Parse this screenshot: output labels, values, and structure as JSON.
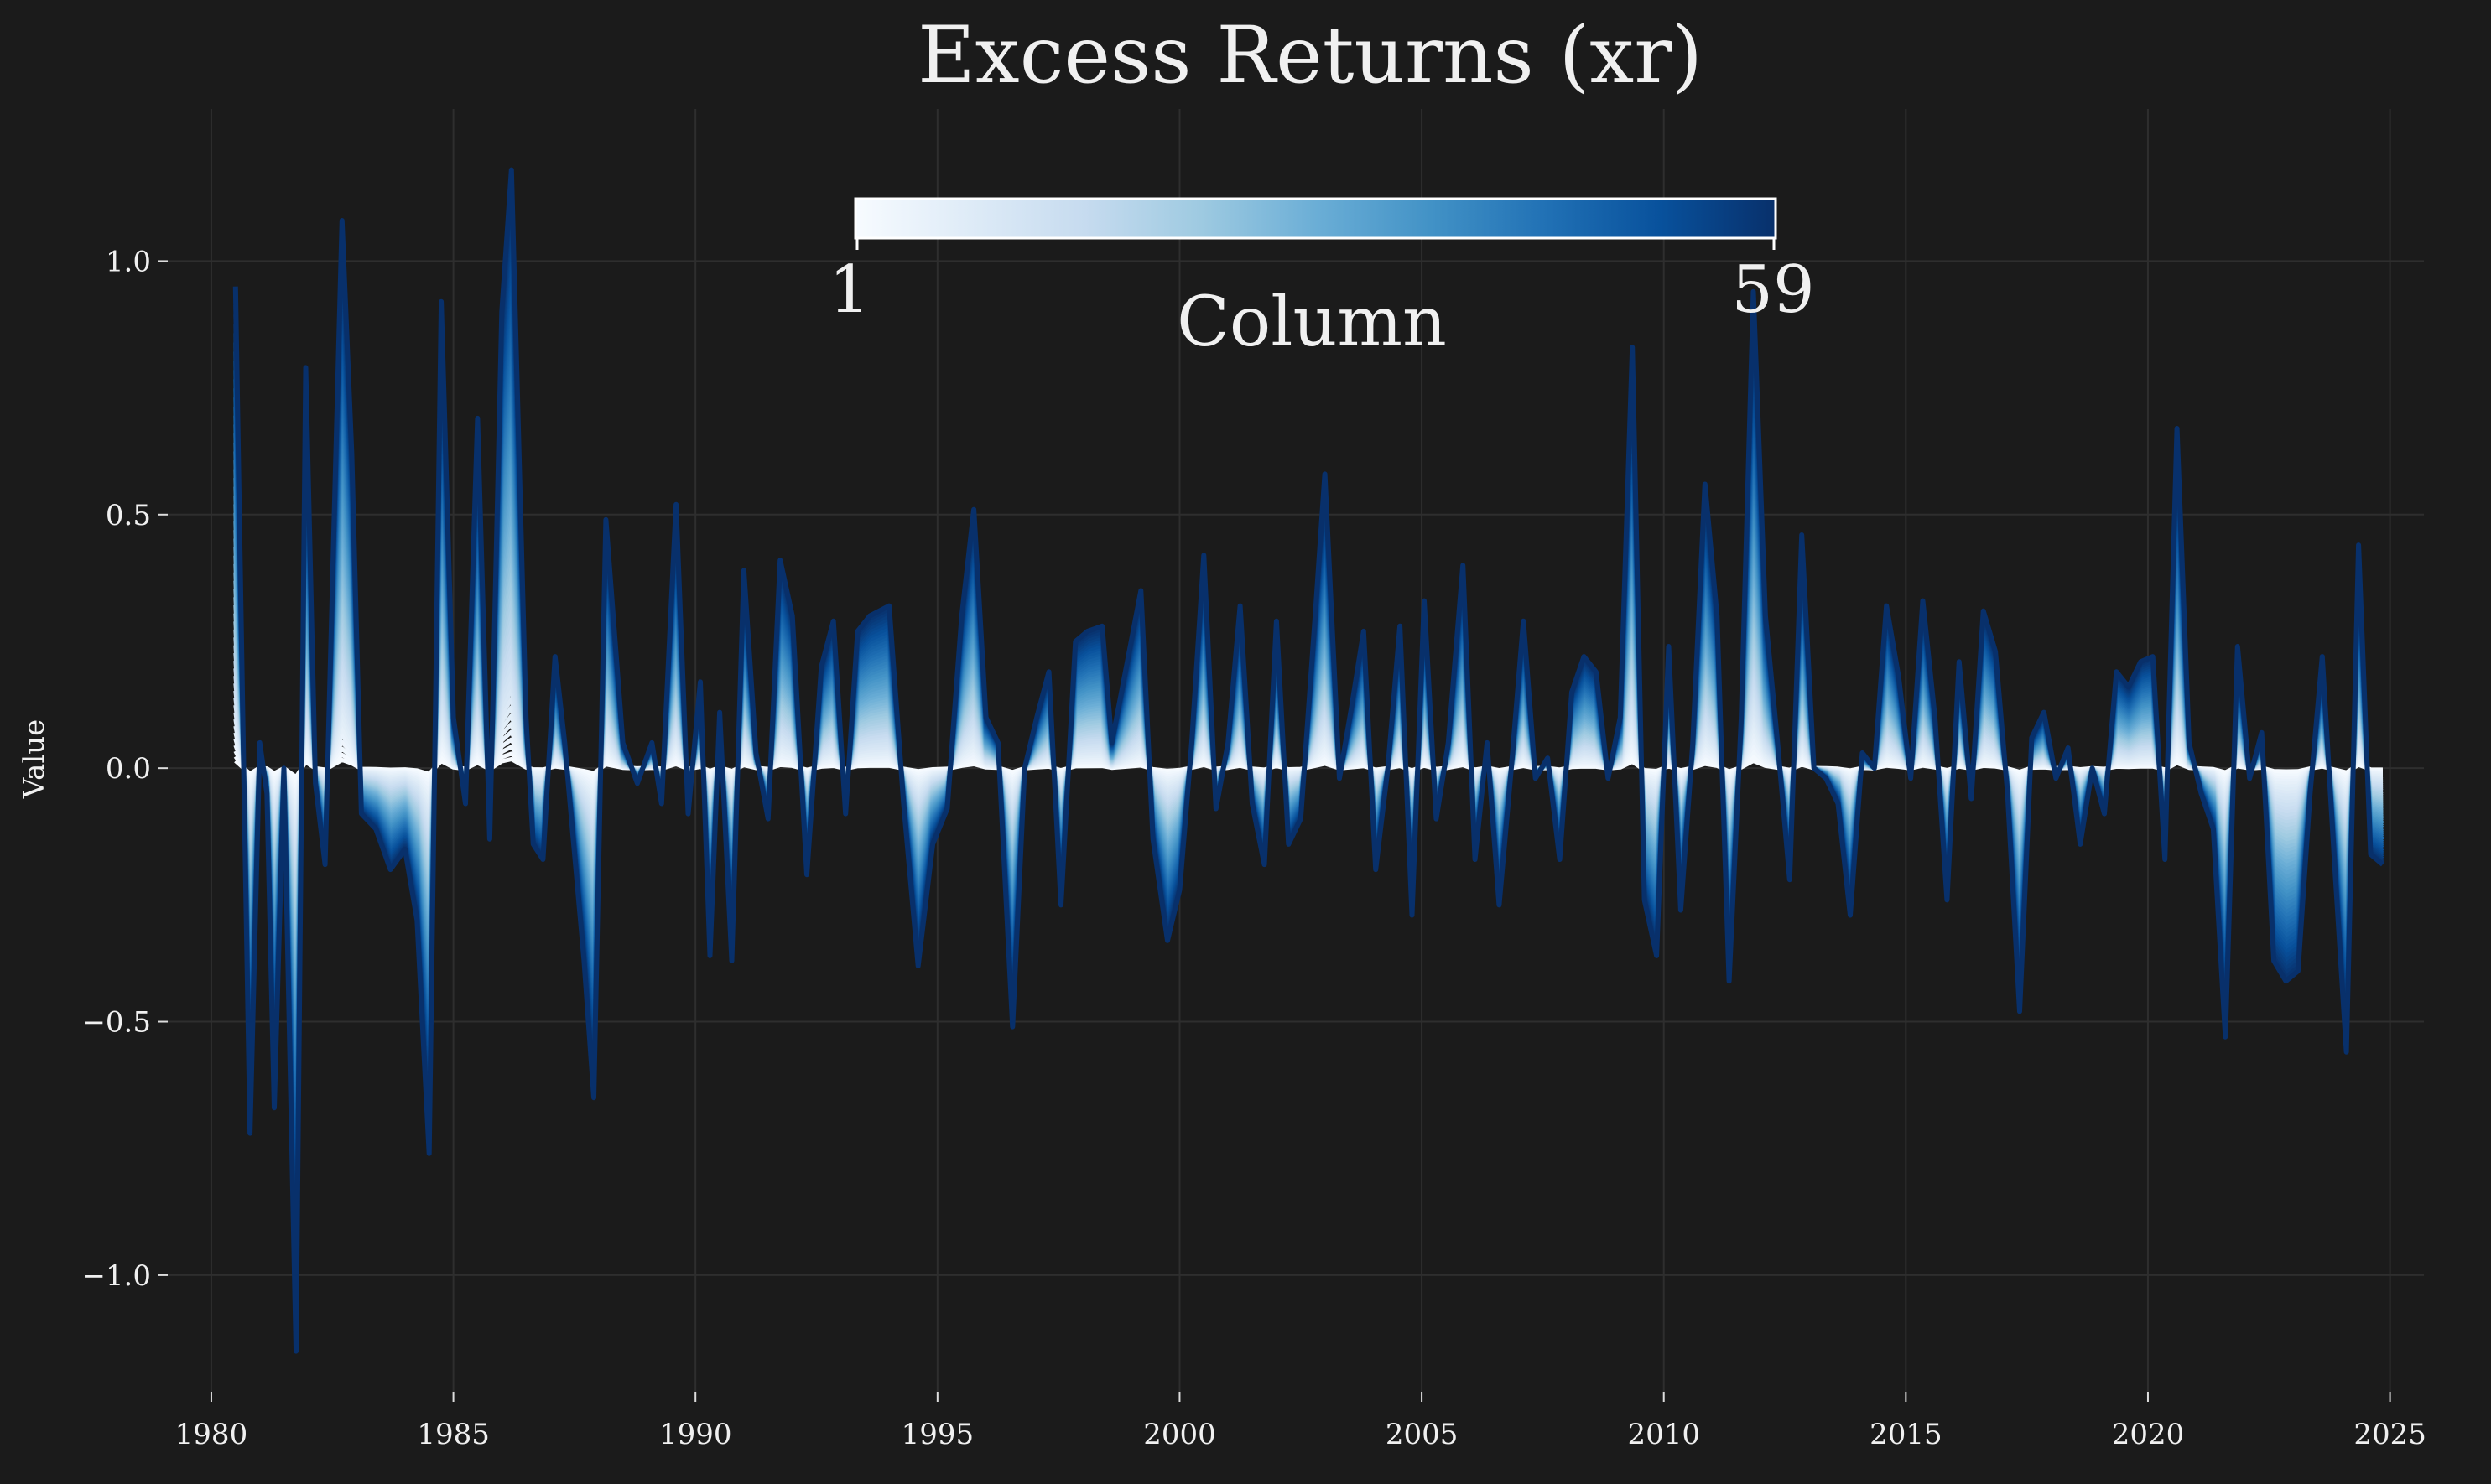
{
  "chart_data": {
    "type": "line",
    "title": "Excess Returns (xr)",
    "xlabel": "",
    "ylabel": "Value",
    "xlim": [
      1979.1,
      2025.7
    ],
    "ylim": [
      -1.23,
      1.3
    ],
    "x_ticks": [
      1980,
      1985,
      1990,
      1995,
      2000,
      2005,
      2010,
      2015,
      2020,
      2025
    ],
    "x_tick_labels": [
      "1980",
      "1985",
      "1990",
      "1995",
      "2000",
      "2005",
      "2010",
      "2015",
      "2020",
      "2025"
    ],
    "y_ticks": [
      1.0,
      0.5,
      0.0,
      -0.5,
      -1.0
    ],
    "y_tick_labels": [
      "1.0",
      "0.5",
      "0.0",
      "−0.5",
      "−1.0"
    ],
    "grid": true,
    "colorbar": {
      "label": "Column",
      "min_label": "1",
      "max_label": "59",
      "min": 1,
      "max": 59,
      "colormap": "Blues",
      "placement": "top-center"
    },
    "series_count": 59,
    "series_note_scaling": "intermediate columns interpolated between column 1 (near 0) and column 59 (largest)",
    "envelope": {
      "name": "column 59",
      "points": [
        [
          1980.5,
          0.95
        ],
        [
          1980.65,
          0.1
        ],
        [
          1980.8,
          -0.72
        ],
        [
          1981.0,
          0.05
        ],
        [
          1981.15,
          -0.05
        ],
        [
          1981.3,
          -0.67
        ],
        [
          1981.5,
          0.0
        ],
        [
          1981.75,
          -1.15
        ],
        [
          1981.95,
          0.79
        ],
        [
          1982.15,
          -0.03
        ],
        [
          1982.35,
          -0.19
        ],
        [
          1982.7,
          1.08
        ],
        [
          1982.9,
          0.62
        ],
        [
          1983.1,
          -0.09
        ],
        [
          1983.4,
          -0.12
        ],
        [
          1983.7,
          -0.2
        ],
        [
          1984.0,
          -0.16
        ],
        [
          1984.25,
          -0.3
        ],
        [
          1984.5,
          -0.76
        ],
        [
          1984.75,
          0.92
        ],
        [
          1985.0,
          0.1
        ],
        [
          1985.25,
          -0.07
        ],
        [
          1985.5,
          0.69
        ],
        [
          1985.75,
          -0.14
        ],
        [
          1986.0,
          0.9
        ],
        [
          1986.2,
          1.18
        ],
        [
          1986.5,
          0.1
        ],
        [
          1986.65,
          -0.15
        ],
        [
          1986.85,
          -0.18
        ],
        [
          1987.1,
          0.22
        ],
        [
          1987.3,
          0.05
        ],
        [
          1987.7,
          -0.38
        ],
        [
          1987.9,
          -0.65
        ],
        [
          1988.15,
          0.49
        ],
        [
          1988.5,
          0.05
        ],
        [
          1988.8,
          -0.03
        ],
        [
          1989.1,
          0.05
        ],
        [
          1989.3,
          -0.07
        ],
        [
          1989.6,
          0.52
        ],
        [
          1989.85,
          -0.09
        ],
        [
          1990.1,
          0.17
        ],
        [
          1990.3,
          -0.37
        ],
        [
          1990.5,
          0.11
        ],
        [
          1990.75,
          -0.38
        ],
        [
          1991.0,
          0.39
        ],
        [
          1991.25,
          0.03
        ],
        [
          1991.5,
          -0.1
        ],
        [
          1991.75,
          0.41
        ],
        [
          1992.0,
          0.3
        ],
        [
          1992.3,
          -0.21
        ],
        [
          1992.6,
          0.2
        ],
        [
          1992.85,
          0.29
        ],
        [
          1993.1,
          -0.09
        ],
        [
          1993.35,
          0.27
        ],
        [
          1993.6,
          0.3
        ],
        [
          1994.0,
          0.32
        ],
        [
          1994.3,
          -0.07
        ],
        [
          1994.6,
          -0.39
        ],
        [
          1994.9,
          -0.15
        ],
        [
          1995.2,
          -0.08
        ],
        [
          1995.5,
          0.3
        ],
        [
          1995.75,
          0.51
        ],
        [
          1996.0,
          0.1
        ],
        [
          1996.25,
          0.05
        ],
        [
          1996.55,
          -0.51
        ],
        [
          1996.8,
          0.0
        ],
        [
          1997.05,
          0.1
        ],
        [
          1997.3,
          0.19
        ],
        [
          1997.55,
          -0.27
        ],
        [
          1997.85,
          0.25
        ],
        [
          1998.1,
          0.27
        ],
        [
          1998.4,
          0.28
        ],
        [
          1998.6,
          0.05
        ],
        [
          1998.9,
          0.2
        ],
        [
          1999.2,
          0.35
        ],
        [
          1999.45,
          -0.14
        ],
        [
          1999.75,
          -0.34
        ],
        [
          2000.0,
          -0.24
        ],
        [
          2000.25,
          0.05
        ],
        [
          2000.5,
          0.42
        ],
        [
          2000.75,
          -0.08
        ],
        [
          2001.0,
          0.05
        ],
        [
          2001.25,
          0.32
        ],
        [
          2001.5,
          -0.07
        ],
        [
          2001.75,
          -0.19
        ],
        [
          2002.0,
          0.29
        ],
        [
          2002.25,
          -0.15
        ],
        [
          2002.5,
          -0.1
        ],
        [
          2002.8,
          0.3
        ],
        [
          2003.0,
          0.58
        ],
        [
          2003.3,
          -0.02
        ],
        [
          2003.55,
          0.12
        ],
        [
          2003.8,
          0.27
        ],
        [
          2004.05,
          -0.2
        ],
        [
          2004.3,
          0.0
        ],
        [
          2004.55,
          0.28
        ],
        [
          2004.8,
          -0.29
        ],
        [
          2005.05,
          0.33
        ],
        [
          2005.3,
          -0.1
        ],
        [
          2005.55,
          0.05
        ],
        [
          2005.85,
          0.4
        ],
        [
          2006.1,
          -0.18
        ],
        [
          2006.35,
          0.05
        ],
        [
          2006.6,
          -0.27
        ],
        [
          2006.85,
          0.0
        ],
        [
          2007.1,
          0.29
        ],
        [
          2007.35,
          -0.02
        ],
        [
          2007.6,
          0.02
        ],
        [
          2007.85,
          -0.18
        ],
        [
          2008.1,
          0.15
        ],
        [
          2008.35,
          0.22
        ],
        [
          2008.6,
          0.19
        ],
        [
          2008.85,
          -0.02
        ],
        [
          2009.1,
          0.1
        ],
        [
          2009.35,
          0.83
        ],
        [
          2009.6,
          -0.26
        ],
        [
          2009.85,
          -0.37
        ],
        [
          2010.1,
          0.24
        ],
        [
          2010.35,
          -0.28
        ],
        [
          2010.6,
          0.05
        ],
        [
          2010.85,
          0.56
        ],
        [
          2011.1,
          0.3
        ],
        [
          2011.35,
          -0.42
        ],
        [
          2011.6,
          0.1
        ],
        [
          2011.85,
          0.94
        ],
        [
          2012.1,
          0.3
        ],
        [
          2012.35,
          0.05
        ],
        [
          2012.6,
          -0.22
        ],
        [
          2012.85,
          0.46
        ],
        [
          2013.1,
          0.0
        ],
        [
          2013.35,
          -0.02
        ],
        [
          2013.6,
          -0.07
        ],
        [
          2013.85,
          -0.29
        ],
        [
          2014.1,
          0.03
        ],
        [
          2014.35,
          0.0
        ],
        [
          2014.6,
          0.32
        ],
        [
          2014.85,
          0.18
        ],
        [
          2015.1,
          -0.02
        ],
        [
          2015.35,
          0.33
        ],
        [
          2015.6,
          0.1
        ],
        [
          2015.85,
          -0.26
        ],
        [
          2016.1,
          0.21
        ],
        [
          2016.35,
          -0.06
        ],
        [
          2016.6,
          0.31
        ],
        [
          2016.85,
          0.23
        ],
        [
          2017.1,
          -0.05
        ],
        [
          2017.35,
          -0.48
        ],
        [
          2017.6,
          0.06
        ],
        [
          2017.85,
          0.11
        ],
        [
          2018.1,
          -0.02
        ],
        [
          2018.35,
          0.04
        ],
        [
          2018.6,
          -0.15
        ],
        [
          2018.85,
          0.0
        ],
        [
          2019.1,
          -0.09
        ],
        [
          2019.35,
          0.19
        ],
        [
          2019.6,
          0.16
        ],
        [
          2019.85,
          0.21
        ],
        [
          2020.1,
          0.22
        ],
        [
          2020.35,
          -0.18
        ],
        [
          2020.6,
          0.67
        ],
        [
          2020.85,
          0.05
        ],
        [
          2021.1,
          -0.05
        ],
        [
          2021.35,
          -0.12
        ],
        [
          2021.6,
          -0.53
        ],
        [
          2021.85,
          0.24
        ],
        [
          2022.1,
          -0.02
        ],
        [
          2022.35,
          0.07
        ],
        [
          2022.6,
          -0.38
        ],
        [
          2022.85,
          -0.42
        ],
        [
          2023.1,
          -0.4
        ],
        [
          2023.35,
          -0.05
        ],
        [
          2023.6,
          0.22
        ],
        [
          2023.85,
          -0.18
        ],
        [
          2024.1,
          -0.56
        ],
        [
          2024.35,
          0.44
        ],
        [
          2024.6,
          -0.17
        ],
        [
          2024.85,
          -0.19
        ]
      ]
    }
  }
}
